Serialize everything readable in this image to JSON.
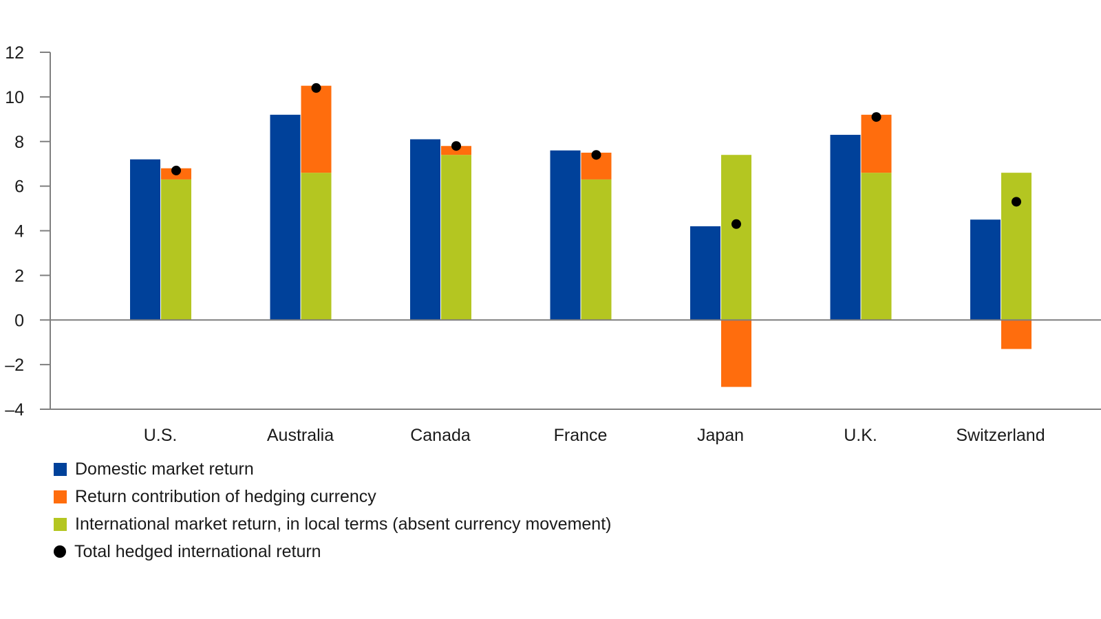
{
  "chart_data": {
    "type": "bar",
    "categories": [
      "U.S.",
      "Australia",
      "Canada",
      "France",
      "Japan",
      "U.K.",
      "Switzerland"
    ],
    "ylim": [
      -4,
      12
    ],
    "yticks": [
      12,
      10,
      8,
      6,
      4,
      2,
      0,
      -2,
      -4
    ],
    "ytick_labels": [
      "12",
      "10",
      "8",
      "6",
      "4",
      "2",
      "0",
      "–2",
      "–4"
    ],
    "grid": false,
    "legend_position": "bottom-left",
    "series": [
      {
        "name": "Domestic market return",
        "color": "#00419a",
        "values": [
          7.2,
          9.2,
          8.1,
          7.6,
          4.2,
          8.3,
          4.5
        ]
      },
      {
        "name": "Return contribution of hedging currency",
        "color": "#ff6d0d",
        "values": [
          0.5,
          3.9,
          0.4,
          1.2,
          -3.0,
          2.6,
          -1.3
        ]
      },
      {
        "name": "International market return, in local terms (absent currency movement)",
        "color": "#b4c621",
        "values": [
          6.3,
          6.6,
          7.4,
          6.3,
          7.4,
          6.6,
          6.6
        ]
      },
      {
        "name": "Total hedged international return",
        "color": "#000000",
        "values": [
          6.7,
          10.4,
          7.8,
          7.4,
          4.3,
          9.1,
          5.3
        ]
      }
    ]
  }
}
